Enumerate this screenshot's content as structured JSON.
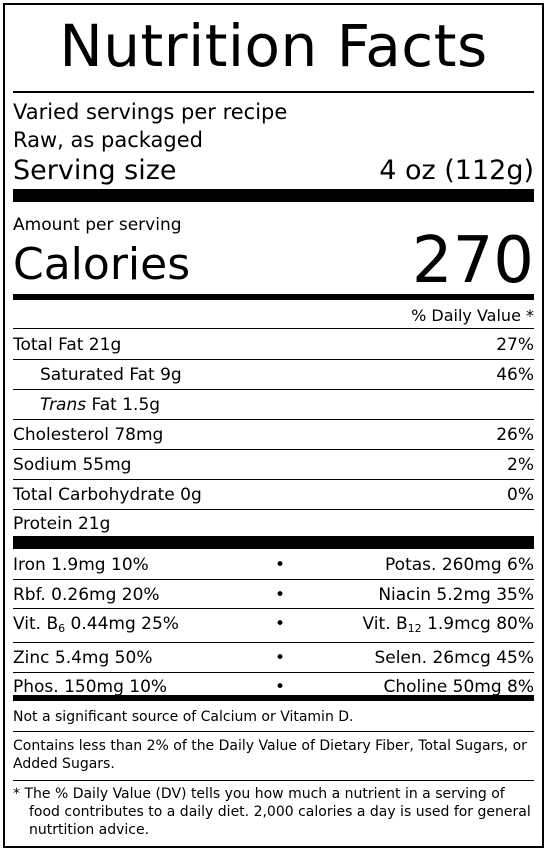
{
  "title": "Nutrition Facts",
  "servings": "Varied servings per recipe",
  "raw": "Raw, as packaged",
  "serving_size": {
    "label": "Serving size",
    "value": "4 oz (112g)"
  },
  "amount_per_serving": "Amount per serving",
  "calories": {
    "label": "Calories",
    "value": "270"
  },
  "dv_header": "% Daily Value *",
  "nutrients": [
    {
      "label": "Total Fat 21g",
      "dv": "27%"
    },
    {
      "label": "Saturated Fat 9g",
      "dv": "46%"
    },
    {
      "label_italic": "Trans",
      "label_rest": " Fat 1.5g",
      "dv": ""
    },
    {
      "label": "Cholesterol 78mg",
      "dv": "26%"
    },
    {
      "label": "Sodium 55mg",
      "dv": "2%"
    },
    {
      "label": "Total Carbohydrate 0g",
      "dv": "0%"
    },
    {
      "label": "Protein 21g",
      "dv": ""
    }
  ],
  "minerals": [
    {
      "left": "Iron 1.9mg 10%",
      "sep": "•",
      "right": "Potas. 260mg 6%"
    },
    {
      "left": "Rbf. 0.26mg 20%",
      "sep": "•",
      "right": "Niacin 5.2mg 35%"
    },
    {
      "left_a": "Vit. B",
      "left_sub": "6",
      "left_b": " 0.44mg 25%",
      "sep": "•",
      "right_a": "Vit. B",
      "right_sub": "12",
      "right_b": " 1.9mcg 80%"
    },
    {
      "left": "Zinc 5.4mg 50%",
      "sep": "•",
      "right": "Selen. 26mcg 45%"
    },
    {
      "left": "Phos. 150mg 10%",
      "sep": "•",
      "right": "Choline 50mg 8%"
    }
  ],
  "note_calcium": "Not a significant source of Calcium or Vitamin D.",
  "note_fiber": "Contains less than 2% of the Daily Value of Dietary Fiber, Total Sugars, or Added Sugars.",
  "footnote": "* The % Daily Value (DV) tells you how much a nutrient in a serving of food contributes to a daily diet. 2,000 calories a day is used for general nutrtition advice."
}
